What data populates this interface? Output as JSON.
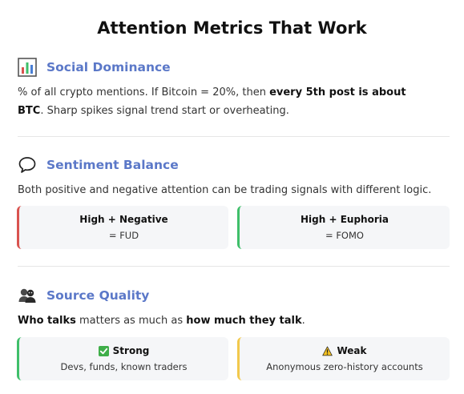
{
  "title": "Attention Metrics That Work",
  "sections": {
    "social": {
      "heading": "Social Dominance",
      "icon": "bar-chart-icon",
      "text_1": "% of all crypto mentions. If Bitcoin = 20%, then ",
      "bold_1": "every 5th post is about BTC",
      "text_2": ". Sharp spikes signal trend start or overheating."
    },
    "sentiment": {
      "heading": "Sentiment Balance",
      "icon": "speech-bubble-icon",
      "text": "Both positive and negative attention can be trading signals with different logic.",
      "cards": [
        {
          "title": "High + Negative",
          "sub": "= FUD",
          "accent": "#d9534f"
        },
        {
          "title": "High + Euphoria",
          "sub": "= FOMO",
          "accent": "#3fbf6a"
        }
      ]
    },
    "source": {
      "heading": "Source Quality",
      "icon": "people-icon",
      "bold_1": "Who talks",
      "text_1": " matters as much as ",
      "bold_2": "how much they talk",
      "text_2": ".",
      "cards": [
        {
          "title": "Strong",
          "sub": "Devs, funds, known traders",
          "icon": "check-mark-icon",
          "accent": "#3fbf6a"
        },
        {
          "title": "Weak",
          "sub": "Anonymous zero-history accounts",
          "icon": "warning-icon",
          "accent": "#f2c94c"
        }
      ]
    }
  }
}
